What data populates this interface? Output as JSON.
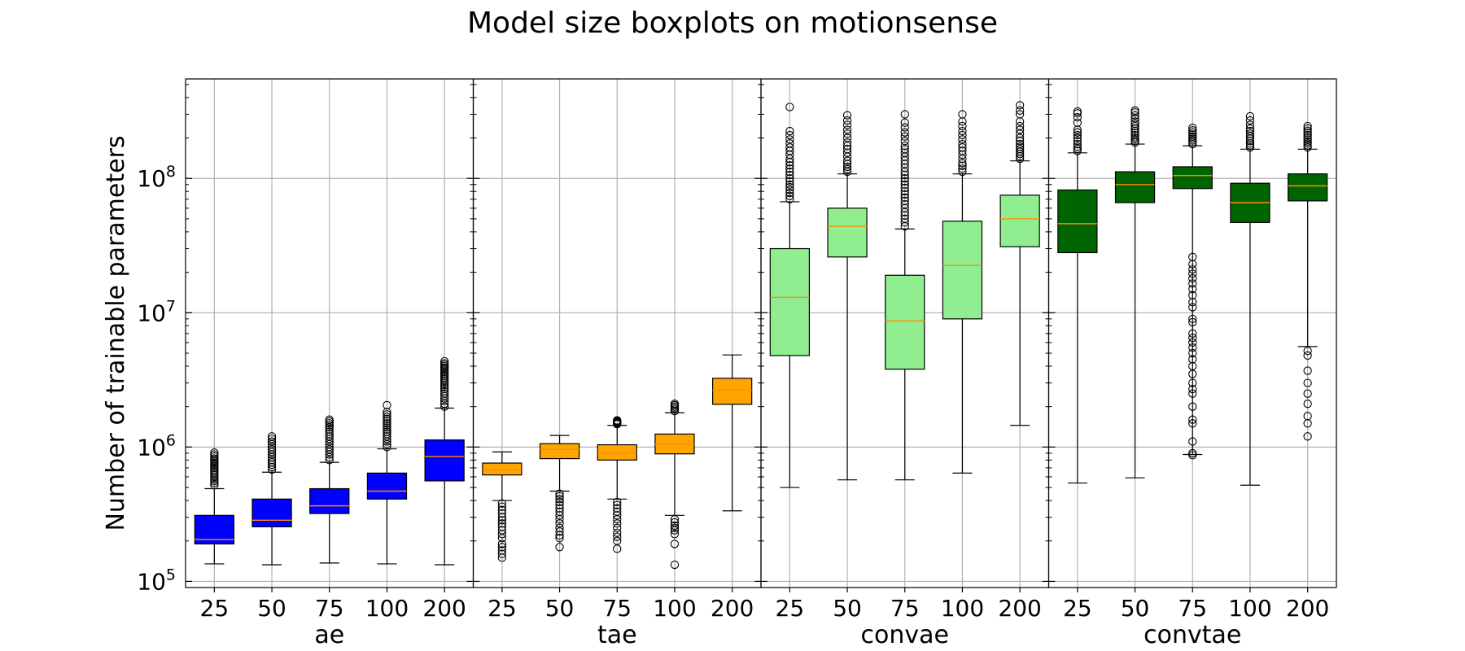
{
  "chart_data": {
    "type": "boxplot",
    "title": "Model size boxplots on motionsense",
    "ylabel": "Number of trainable parameters",
    "yscale": "log",
    "ylim": [
      90000,
      550000000
    ],
    "y_ticks": [
      {
        "value": 100000,
        "base": "10",
        "exp": "5"
      },
      {
        "value": 1000000,
        "base": "10",
        "exp": "6"
      },
      {
        "value": 10000000,
        "base": "10",
        "exp": "7"
      },
      {
        "value": 100000000,
        "base": "10",
        "exp": "8"
      }
    ],
    "grid": true,
    "categories": [
      "25",
      "50",
      "75",
      "100",
      "200"
    ],
    "median_color": "#ff8c00",
    "panels": [
      {
        "name": "ae",
        "color": "#0000ff",
        "boxes": [
          {
            "category": "25",
            "whislo": 135000,
            "q1": 190000,
            "med": 205000,
            "q3": 310000,
            "whishi": 490000,
            "fliers_hi": [
              520000,
              540000,
              560000,
              580000,
              600000,
              620000,
              640000,
              660000,
              680000,
              700000,
              720000,
              740000,
              760000,
              780000,
              800000,
              820000,
              850000,
              880000,
              910000
            ],
            "fliers_lo": []
          },
          {
            "category": "50",
            "whislo": 133000,
            "q1": 255000,
            "med": 285000,
            "q3": 410000,
            "whishi": 650000,
            "fliers_hi": [
              680000,
              710000,
              740000,
              770000,
              800000,
              840000,
              880000,
              920000,
              960000,
              1000000,
              1050000,
              1100000,
              1150000,
              1200000
            ],
            "fliers_lo": []
          },
          {
            "category": "75",
            "whislo": 137000,
            "q1": 320000,
            "med": 365000,
            "q3": 490000,
            "whishi": 770000,
            "fliers_hi": [
              800000,
              840000,
              880000,
              920000,
              960000,
              1000000,
              1050000,
              1100000,
              1150000,
              1200000,
              1250000,
              1300000,
              1350000,
              1400000,
              1450000,
              1500000,
              1550000,
              1600000
            ],
            "fliers_lo": []
          },
          {
            "category": "100",
            "whislo": 135000,
            "q1": 410000,
            "med": 470000,
            "q3": 640000,
            "whishi": 970000,
            "fliers_hi": [
              1000000,
              1050000,
              1100000,
              1150000,
              1200000,
              1250000,
              1300000,
              1350000,
              1400000,
              1450000,
              1500000,
              1560000,
              1620000,
              1680000,
              1750000,
              1820000,
              2050000
            ],
            "fliers_lo": []
          },
          {
            "category": "200",
            "whislo": 133000,
            "q1": 560000,
            "med": 850000,
            "q3": 1130000,
            "whishi": 1950000,
            "fliers_hi": [
              2000000,
              2100000,
              2200000,
              2300000,
              2400000,
              2500000,
              2600000,
              2700000,
              2800000,
              2900000,
              3000000,
              3100000,
              3200000,
              3300000,
              3400000,
              3500000,
              3600000,
              3700000,
              3800000,
              3900000,
              4000000,
              4100000,
              4200000,
              4350000
            ],
            "fliers_lo": []
          }
        ]
      },
      {
        "name": "tae",
        "color": "#ffa500",
        "boxes": [
          {
            "category": "25",
            "whislo": 400000,
            "q1": 620000,
            "med": 680000,
            "q3": 760000,
            "whishi": 920000,
            "fliers_hi": [],
            "fliers_lo": [
              380000,
              360000,
              340000,
              320000,
              300000,
              285000,
              270000,
              255000,
              240000,
              225000,
              210000,
              190000,
              180000,
              170000,
              160000,
              150000
            ]
          },
          {
            "category": "50",
            "whislo": 470000,
            "q1": 820000,
            "med": 960000,
            "q3": 1060000,
            "whishi": 1220000,
            "fliers_hi": [],
            "fliers_lo": [
              450000,
              430000,
              410000,
              390000,
              370000,
              350000,
              330000,
              310000,
              290000,
              270000,
              250000,
              235000,
              220000,
              210000,
              180000
            ]
          },
          {
            "category": "75",
            "whislo": 410000,
            "q1": 800000,
            "med": 900000,
            "q3": 1040000,
            "whishi": 1450000,
            "fliers_hi": [
              1480000,
              1500000,
              1520000,
              1540000,
              1560000,
              1580000
            ],
            "fliers_lo": [
              390000,
              370000,
              350000,
              330000,
              310000,
              290000,
              270000,
              250000,
              230000,
              215000,
              200000,
              175000
            ]
          },
          {
            "category": "100",
            "whislo": 310000,
            "q1": 890000,
            "med": 1050000,
            "q3": 1250000,
            "whishi": 1800000,
            "fliers_hi": [
              1850000,
              1900000,
              1950000,
              2000000,
              2050000,
              2100000
            ],
            "fliers_lo": [
              290000,
              275000,
              260000,
              250000,
              240000,
              225000,
              190000,
              133000
            ]
          },
          {
            "category": "200",
            "whislo": 335000,
            "q1": 2080000,
            "med": 2650000,
            "q3": 3250000,
            "whishi": 4850000,
            "fliers_hi": [],
            "fliers_lo": []
          }
        ]
      },
      {
        "name": "convae",
        "color": "#90ee90",
        "boxes": [
          {
            "category": "25",
            "whislo": 500000,
            "q1": 4800000,
            "med": 13000000,
            "q3": 30000000,
            "whishi": 67000000,
            "fliers_hi": [
              70000000,
              74000000,
              78000000,
              82000000,
              86000000,
              90000000,
              95000000,
              100000000,
              106000000,
              112000000,
              118000000,
              125000000,
              132000000,
              140000000,
              150000000,
              160000000,
              170000000,
              182000000,
              195000000,
              210000000,
              225000000,
              340000000
            ],
            "fliers_lo": []
          },
          {
            "category": "50",
            "whislo": 570000,
            "q1": 26000000,
            "med": 44000000,
            "q3": 60000000,
            "whishi": 108000000,
            "fliers_hi": [
              112000000,
              117000000,
              122000000,
              128000000,
              135000000,
              145000000,
              155000000,
              165000000,
              175000000,
              185000000,
              200000000,
              215000000,
              230000000,
              250000000,
              270000000,
              295000000
            ],
            "fliers_lo": []
          },
          {
            "category": "75",
            "whislo": 570000,
            "q1": 3800000,
            "med": 8700000,
            "q3": 19000000,
            "whishi": 42000000,
            "fliers_hi": [
              44000000,
              47000000,
              50000000,
              53000000,
              56000000,
              60000000,
              64000000,
              68000000,
              72000000,
              76000000,
              80000000,
              85000000,
              90000000,
              95000000,
              100000000,
              106000000,
              112000000,
              120000000,
              128000000,
              136000000,
              145000000,
              155000000,
              165000000,
              175000000,
              190000000,
              205000000,
              220000000,
              240000000,
              260000000,
              300000000
            ],
            "fliers_lo": []
          },
          {
            "category": "100",
            "whislo": 640000,
            "q1": 9000000,
            "med": 22500000,
            "q3": 48000000,
            "whishi": 108000000,
            "fliers_hi": [
              112000000,
              118000000,
              124000000,
              130000000,
              140000000,
              150000000,
              160000000,
              170000000,
              180000000,
              195000000,
              210000000,
              225000000,
              245000000,
              265000000,
              300000000
            ],
            "fliers_lo": []
          },
          {
            "category": "200",
            "whislo": 1450000,
            "q1": 31000000,
            "med": 50000000,
            "q3": 75000000,
            "whishi": 135000000,
            "fliers_hi": [
              140000000,
              146000000,
              152000000,
              158000000,
              165000000,
              172000000,
              180000000,
              190000000,
              200000000,
              215000000,
              230000000,
              245000000,
              265000000,
              300000000,
              320000000,
              350000000
            ],
            "fliers_lo": []
          }
        ]
      },
      {
        "name": "convtae",
        "color": "#006400",
        "boxes": [
          {
            "category": "25",
            "whislo": 540000,
            "q1": 28000000,
            "med": 46000000,
            "q3": 82000000,
            "whishi": 155000000,
            "fliers_hi": [
              160000000,
              166000000,
              172000000,
              180000000,
              190000000,
              200000000,
              210000000,
              220000000,
              230000000,
              260000000,
              285000000,
              305000000,
              315000000
            ],
            "fliers_lo": []
          },
          {
            "category": "50",
            "whislo": 590000,
            "q1": 66000000,
            "med": 90000000,
            "q3": 112000000,
            "whishi": 180000000,
            "fliers_hi": [
              185000000,
              190000000,
              196000000,
              202000000,
              210000000,
              218000000,
              226000000,
              235000000,
              245000000,
              255000000,
              265000000,
              280000000,
              295000000,
              310000000,
              320000000
            ],
            "fliers_lo": []
          },
          {
            "category": "75",
            "whislo": 880000,
            "q1": 84000000,
            "med": 105000000,
            "q3": 122000000,
            "whishi": 175000000,
            "fliers_hi": [
              180000000,
              186000000,
              192000000,
              198000000,
              205000000,
              212000000,
              220000000,
              228000000,
              238000000
            ],
            "fliers_lo": [
              26000000,
              23000000,
              21000000,
              19500000,
              18000000,
              16500000,
              15000000,
              13500000,
              12000000,
              11000000,
              9000000,
              8500000,
              7000000,
              6500000,
              6000000,
              5500000,
              5000000,
              4500000,
              4000000,
              3500000,
              3000000,
              2700000,
              2500000,
              2000000,
              1600000,
              1500000,
              1100000,
              900000,
              870000
            ]
          },
          {
            "category": "100",
            "whislo": 520000,
            "q1": 47000000,
            "med": 66000000,
            "q3": 92000000,
            "whishi": 165000000,
            "fliers_hi": [
              170000000,
              176000000,
              182000000,
              190000000,
              198000000,
              206000000,
              215000000,
              225000000,
              235000000,
              250000000,
              270000000,
              290000000
            ],
            "fliers_lo": []
          },
          {
            "category": "200",
            "whislo": 5600000,
            "q1": 68000000,
            "med": 88000000,
            "q3": 108000000,
            "whishi": 165000000,
            "fliers_hi": [
              170000000,
              176000000,
              182000000,
              188000000,
              195000000,
              202000000,
              210000000,
              218000000,
              226000000,
              235000000,
              245000000
            ],
            "fliers_lo": [
              5200000,
              4800000,
              3700000,
              3000000,
              2500000,
              2100000,
              1700000,
              1500000,
              1200000
            ]
          }
        ]
      }
    ]
  }
}
